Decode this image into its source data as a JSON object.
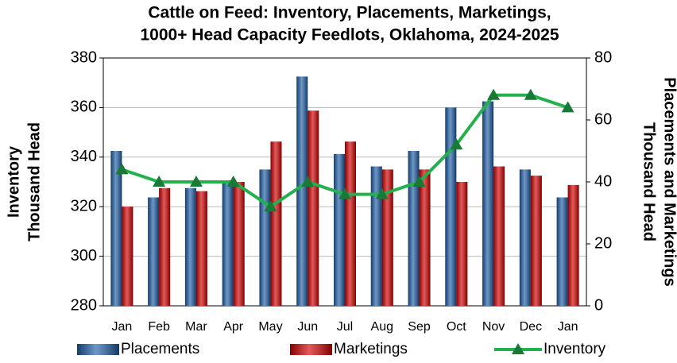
{
  "chart_data": {
    "type": "bar",
    "title": [
      "Cattle on Feed: Inventory, Placements, Marketings,",
      "1000+ Head Capacity Feedlots, Oklahoma, 2024-2025"
    ],
    "ylabel": [
      "Inventory",
      "Thousand Head"
    ],
    "y2label": [
      "Placements and Marketings",
      "Thousand Head"
    ],
    "categories": [
      "Jan",
      "Feb",
      "Mar",
      "Apr",
      "May",
      "Jun",
      "Jul",
      "Aug",
      "Sep",
      "Oct",
      "Nov",
      "Dec",
      "Jan"
    ],
    "ylim": [
      280,
      380
    ],
    "yticks": [
      280,
      300,
      320,
      340,
      360,
      380
    ],
    "y2lim": [
      0,
      80
    ],
    "y2ticks": [
      0,
      20,
      40,
      60,
      80
    ],
    "grid": true,
    "legend": "bottom",
    "series": [
      {
        "name": "Placements",
        "type": "bar",
        "axis": "y2",
        "color": "#1f5fa8",
        "values": [
          50,
          35,
          38,
          40,
          44,
          74,
          49,
          45,
          50,
          64,
          66,
          44,
          35
        ]
      },
      {
        "name": "Marketings",
        "type": "bar",
        "axis": "y2",
        "color": "#d40000",
        "values": [
          32,
          38,
          37,
          40,
          53,
          63,
          53,
          44,
          44,
          40,
          45,
          42,
          39
        ]
      },
      {
        "name": "Inventory",
        "type": "line",
        "axis": "y",
        "color": "#22b14c",
        "marker_color": "#187a36",
        "values": [
          335,
          330,
          330,
          330,
          320,
          330,
          325,
          325,
          330,
          345,
          365,
          365,
          360
        ]
      }
    ]
  }
}
